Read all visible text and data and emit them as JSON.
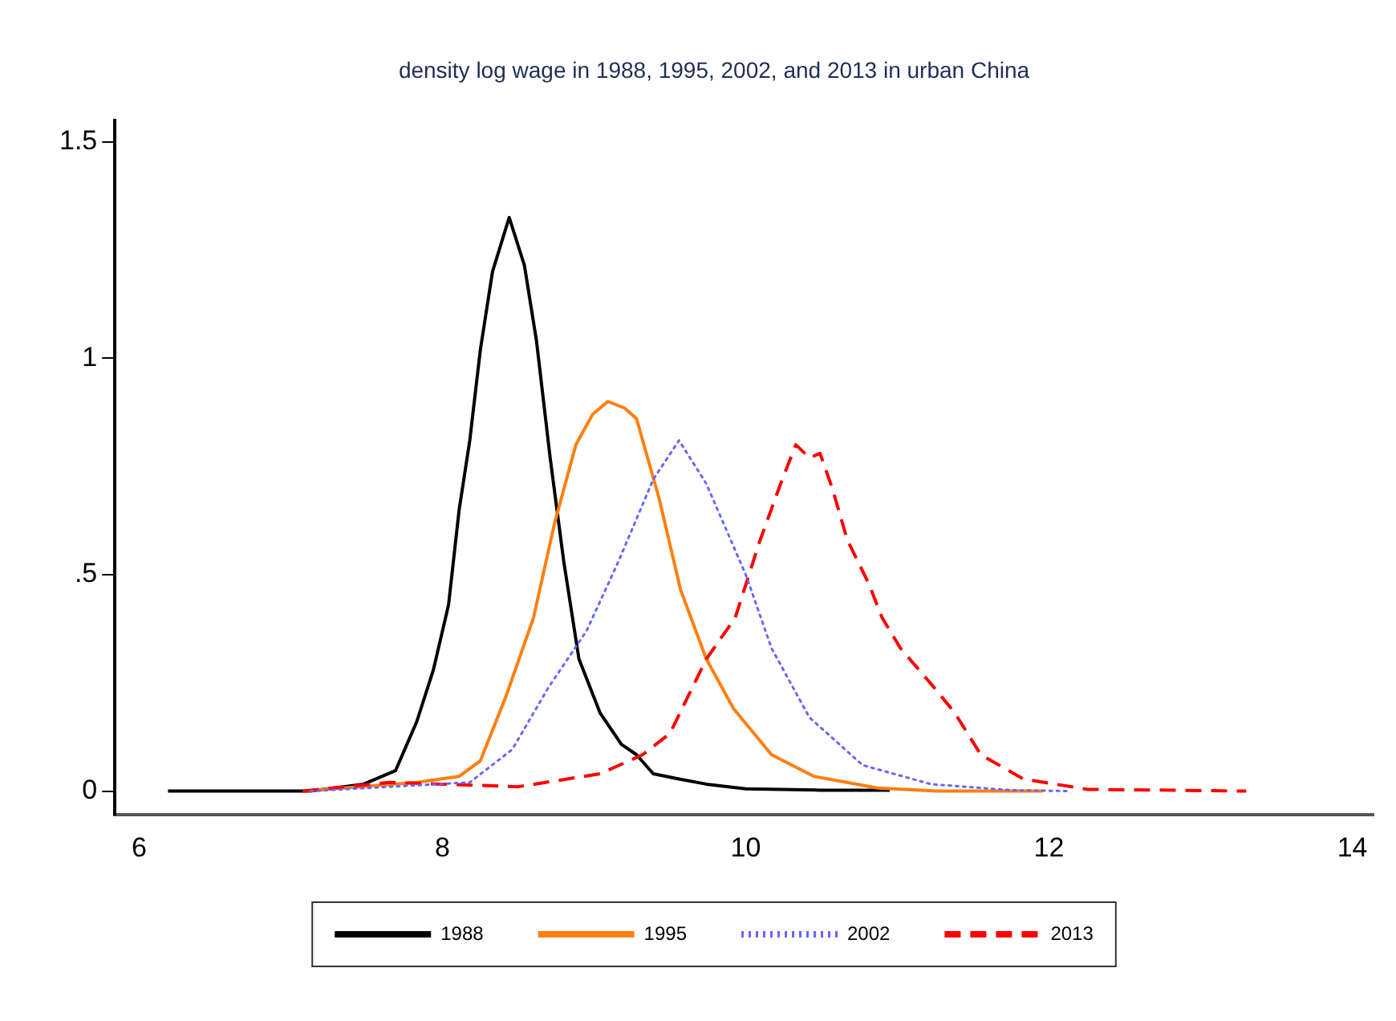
{
  "chart_data": {
    "type": "line",
    "title": "density log wage in 1988, 1995, 2002, and 2013 in urban China",
    "xlim": [
      5.84,
      14.14
    ],
    "xticks": [
      6,
      8,
      10,
      12,
      14
    ],
    "ylim": [
      -0.055,
      1.55
    ],
    "yticks": [
      0,
      {
        "value": 0.5,
        "label": ".5"
      },
      1,
      1.5
    ],
    "grid": false,
    "legend": "bottom",
    "marker": "none",
    "series": [
      {
        "name": "1988",
        "color": "#000000",
        "line_style": "solid",
        "x": [
          6.19,
          7.13,
          7.48,
          7.69,
          7.83,
          7.94,
          8.04,
          8.11,
          8.18,
          8.25,
          8.33,
          8.44,
          8.54,
          8.62,
          8.71,
          8.8,
          8.9,
          9.04,
          9.18,
          9.28,
          9.39,
          9.56,
          9.74,
          10.0,
          10.5,
          10.95
        ],
        "values": [
          0,
          0,
          0.016,
          0.047,
          0.16,
          0.28,
          0.43,
          0.65,
          0.81,
          1.02,
          1.2,
          1.325,
          1.215,
          1.04,
          0.77,
          0.53,
          0.305,
          0.18,
          0.108,
          0.084,
          0.04,
          0.028,
          0.016,
          0.005,
          0.002,
          0.002
        ]
      },
      {
        "name": "1995",
        "color": "#ff7f0e",
        "line_style": "solid",
        "x": [
          7.08,
          7.83,
          8.11,
          8.25,
          8.42,
          8.6,
          8.74,
          8.88,
          8.99,
          9.09,
          9.2,
          9.28,
          9.43,
          9.57,
          9.74,
          9.92,
          10.17,
          10.45,
          10.87,
          11.26,
          11.96
        ],
        "values": [
          0,
          0.02,
          0.034,
          0.07,
          0.22,
          0.4,
          0.62,
          0.8,
          0.87,
          0.9,
          0.885,
          0.86,
          0.674,
          0.465,
          0.305,
          0.19,
          0.084,
          0.034,
          0.007,
          0,
          0
        ]
      },
      {
        "name": "2002",
        "color": "#6666ff",
        "line_style": "dotted",
        "x": [
          7.13,
          8.18,
          8.46,
          8.7,
          8.95,
          9.16,
          9.39,
          9.56,
          9.74,
          10.0,
          10.17,
          10.42,
          10.77,
          11.22,
          11.75,
          12.14
        ],
        "values": [
          0,
          0.02,
          0.096,
          0.24,
          0.37,
          0.53,
          0.72,
          0.81,
          0.71,
          0.5,
          0.33,
          0.17,
          0.06,
          0.016,
          0.002,
          0
        ]
      },
      {
        "name": "2013",
        "color": "#ff0000",
        "line_style": "dashed",
        "x": [
          7.08,
          7.65,
          8.0,
          8.5,
          9.04,
          9.32,
          9.5,
          9.74,
          9.93,
          10.09,
          10.23,
          10.33,
          10.42,
          10.49,
          10.57,
          10.67,
          10.81,
          10.9,
          11.02,
          11.24,
          11.38,
          11.55,
          11.83,
          12.25,
          13.3
        ],
        "values": [
          0,
          0.02,
          0.016,
          0.01,
          0.04,
          0.084,
          0.133,
          0.305,
          0.4,
          0.575,
          0.71,
          0.8,
          0.77,
          0.78,
          0.7,
          0.58,
          0.48,
          0.4,
          0.33,
          0.24,
          0.18,
          0.084,
          0.028,
          0.004,
          0
        ]
      }
    ]
  }
}
